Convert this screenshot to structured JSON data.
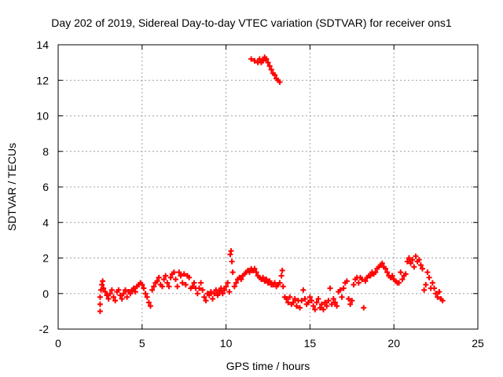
{
  "chart_data": {
    "type": "scatter",
    "title": "Day 202 of 2019, Sidereal Day-to-day VTEC variation (SDTVAR) for receiver ons1",
    "xlabel": "GPS time / hours",
    "ylabel": "SDTVAR / TECUs",
    "xlim": [
      0,
      25
    ],
    "ylim": [
      -2,
      14
    ],
    "xticks": [
      "0",
      "5",
      "10",
      "15",
      "20",
      "25"
    ],
    "yticks": [
      "-2",
      "0",
      "2",
      "4",
      "6",
      "8",
      "10",
      "12",
      "14"
    ],
    "grid": true,
    "marker": "plus",
    "color": "#ff0000",
    "series": [
      {
        "name": "SDTVAR",
        "points": [
          [
            2.5,
            -1.0
          ],
          [
            2.5,
            -0.6
          ],
          [
            2.5,
            -0.2
          ],
          [
            2.55,
            0.2
          ],
          [
            2.6,
            0.5
          ],
          [
            2.65,
            0.7
          ],
          [
            2.7,
            0.3
          ],
          [
            2.8,
            0.1
          ],
          [
            2.9,
            -0.1
          ],
          [
            3.0,
            -0.3
          ],
          [
            3.1,
            0.0
          ],
          [
            3.2,
            0.2
          ],
          [
            3.3,
            -0.2
          ],
          [
            3.4,
            -0.4
          ],
          [
            3.5,
            0.1
          ],
          [
            3.6,
            0.2
          ],
          [
            3.7,
            -0.1
          ],
          [
            3.8,
            -0.3
          ],
          [
            3.9,
            0.0
          ],
          [
            4.0,
            0.2
          ],
          [
            4.1,
            -0.2
          ],
          [
            4.2,
            0.1
          ],
          [
            4.3,
            0.0
          ],
          [
            4.4,
            0.2
          ],
          [
            4.5,
            0.3
          ],
          [
            4.6,
            0.1
          ],
          [
            4.7,
            0.4
          ],
          [
            4.8,
            0.5
          ],
          [
            4.9,
            0.6
          ],
          [
            5.0,
            0.5
          ],
          [
            5.1,
            0.3
          ],
          [
            5.2,
            0.0
          ],
          [
            5.3,
            -0.2
          ],
          [
            5.4,
            -0.5
          ],
          [
            5.5,
            -0.7
          ],
          [
            5.6,
            0.2
          ],
          [
            5.7,
            0.4
          ],
          [
            5.8,
            0.6
          ],
          [
            5.9,
            0.7
          ],
          [
            6.0,
            0.9
          ],
          [
            6.1,
            0.5
          ],
          [
            6.2,
            0.4
          ],
          [
            6.3,
            0.8
          ],
          [
            6.4,
            1.0
          ],
          [
            6.5,
            0.6
          ],
          [
            6.6,
            0.4
          ],
          [
            6.7,
            0.9
          ],
          [
            6.8,
            1.1
          ],
          [
            6.9,
            1.2
          ],
          [
            7.0,
            0.8
          ],
          [
            7.1,
            0.4
          ],
          [
            7.2,
            1.2
          ],
          [
            7.3,
            1.0
          ],
          [
            7.4,
            0.6
          ],
          [
            7.5,
            1.1
          ],
          [
            7.6,
            0.5
          ],
          [
            7.7,
            1.0
          ],
          [
            7.8,
            0.9
          ],
          [
            7.9,
            0.3
          ],
          [
            8.0,
            0.4
          ],
          [
            8.1,
            0.6
          ],
          [
            8.2,
            0.3
          ],
          [
            8.3,
            0.0
          ],
          [
            8.4,
            0.3
          ],
          [
            8.5,
            0.6
          ],
          [
            8.6,
            0.2
          ],
          [
            8.7,
            -0.2
          ],
          [
            8.8,
            -0.4
          ],
          [
            8.9,
            0.0
          ],
          [
            9.0,
            -0.1
          ],
          [
            9.1,
            0.1
          ],
          [
            9.2,
            -0.3
          ],
          [
            9.3,
            0.0
          ],
          [
            9.4,
            0.2
          ],
          [
            9.5,
            -0.1
          ],
          [
            9.6,
            0.1
          ],
          [
            9.7,
            0.3
          ],
          [
            9.8,
            0.0
          ],
          [
            9.9,
            0.2
          ],
          [
            10.0,
            0.4
          ],
          [
            10.1,
            0.6
          ],
          [
            10.2,
            0.1
          ],
          [
            10.25,
            2.2
          ],
          [
            10.3,
            2.4
          ],
          [
            10.35,
            1.8
          ],
          [
            10.4,
            1.2
          ],
          [
            10.5,
            0.4
          ],
          [
            10.6,
            0.6
          ],
          [
            10.7,
            0.8
          ],
          [
            10.8,
            0.9
          ],
          [
            10.9,
            0.8
          ],
          [
            11.0,
            1.0
          ],
          [
            11.1,
            1.1
          ],
          [
            11.2,
            1.2
          ],
          [
            11.3,
            1.3
          ],
          [
            11.4,
            1.2
          ],
          [
            11.5,
            1.4
          ],
          [
            11.6,
            1.3
          ],
          [
            11.7,
            1.4
          ],
          [
            11.8,
            1.2
          ],
          [
            11.9,
            1.0
          ],
          [
            12.0,
            0.9
          ],
          [
            12.1,
            0.8
          ],
          [
            12.2,
            0.9
          ],
          [
            12.3,
            0.7
          ],
          [
            12.4,
            0.8
          ],
          [
            12.5,
            0.6
          ],
          [
            12.6,
            0.7
          ],
          [
            12.7,
            0.5
          ],
          [
            12.8,
            0.5
          ],
          [
            12.9,
            0.6
          ],
          [
            13.0,
            0.4
          ],
          [
            13.1,
            0.5
          ],
          [
            13.2,
            0.6
          ],
          [
            13.3,
            1.0
          ],
          [
            13.35,
            1.3
          ],
          [
            13.4,
            0.4
          ],
          [
            13.5,
            -0.2
          ],
          [
            13.6,
            -0.3
          ],
          [
            13.7,
            -0.5
          ],
          [
            13.8,
            -0.2
          ],
          [
            13.9,
            -0.6
          ],
          [
            14.0,
            -0.5
          ],
          [
            14.1,
            -0.3
          ],
          [
            14.2,
            -0.7
          ],
          [
            14.3,
            -0.4
          ],
          [
            14.4,
            -0.8
          ],
          [
            14.5,
            -0.4
          ],
          [
            14.6,
            0.2
          ],
          [
            14.7,
            -0.3
          ],
          [
            14.8,
            -0.6
          ],
          [
            14.9,
            -0.5
          ],
          [
            15.0,
            -0.2
          ],
          [
            15.1,
            -0.4
          ],
          [
            15.2,
            -0.7
          ],
          [
            15.3,
            -0.9
          ],
          [
            15.4,
            -0.5
          ],
          [
            15.5,
            -0.3
          ],
          [
            15.6,
            -0.8
          ],
          [
            15.7,
            -0.6
          ],
          [
            15.8,
            -0.9
          ],
          [
            15.9,
            -0.5
          ],
          [
            16.0,
            -0.7
          ],
          [
            16.1,
            -0.4
          ],
          [
            16.2,
            0.3
          ],
          [
            16.3,
            -0.6
          ],
          [
            16.4,
            -0.3
          ],
          [
            16.5,
            -0.5
          ],
          [
            16.6,
            -0.7
          ],
          [
            16.7,
            0.1
          ],
          [
            16.8,
            0.2
          ],
          [
            16.9,
            -0.2
          ],
          [
            17.0,
            0.3
          ],
          [
            17.1,
            0.6
          ],
          [
            17.2,
            0.7
          ],
          [
            17.3,
            -0.3
          ],
          [
            17.4,
            -0.6
          ],
          [
            17.5,
            -0.4
          ],
          [
            17.6,
            0.5
          ],
          [
            17.7,
            0.8
          ],
          [
            17.8,
            0.9
          ],
          [
            17.9,
            0.6
          ],
          [
            18.0,
            0.9
          ],
          [
            18.1,
            0.8
          ],
          [
            18.2,
            -0.8
          ],
          [
            18.3,
            0.7
          ],
          [
            18.4,
            0.9
          ],
          [
            18.5,
            1.0
          ],
          [
            18.6,
            1.0
          ],
          [
            18.7,
            1.2
          ],
          [
            18.8,
            1.1
          ],
          [
            18.9,
            1.2
          ],
          [
            19.0,
            1.4
          ],
          [
            19.1,
            1.5
          ],
          [
            19.2,
            1.6
          ],
          [
            19.3,
            1.7
          ],
          [
            19.4,
            1.5
          ],
          [
            19.5,
            1.4
          ],
          [
            19.6,
            1.2
          ],
          [
            19.7,
            1.0
          ],
          [
            19.8,
            0.9
          ],
          [
            19.9,
            1.0
          ],
          [
            20.0,
            0.8
          ],
          [
            20.1,
            0.7
          ],
          [
            20.2,
            0.6
          ],
          [
            20.3,
            0.6
          ],
          [
            20.4,
            1.2
          ],
          [
            20.5,
            0.8
          ],
          [
            20.6,
            1.0
          ],
          [
            20.7,
            1.1
          ],
          [
            20.8,
            1.8
          ],
          [
            20.9,
            2.0
          ],
          [
            21.0,
            1.7
          ],
          [
            21.1,
            1.9
          ],
          [
            21.2,
            1.5
          ],
          [
            21.3,
            2.1
          ],
          [
            21.4,
            1.8
          ],
          [
            21.5,
            1.9
          ],
          [
            21.6,
            1.6
          ],
          [
            21.7,
            1.4
          ],
          [
            21.8,
            0.2
          ],
          [
            21.9,
            0.5
          ],
          [
            22.0,
            1.2
          ],
          [
            22.1,
            0.9
          ],
          [
            22.2,
            0.3
          ],
          [
            22.3,
            0.6
          ],
          [
            22.4,
            0.3
          ],
          [
            22.5,
            0.0
          ],
          [
            22.6,
            -0.2
          ],
          [
            22.7,
            0.1
          ],
          [
            22.8,
            -0.3
          ],
          [
            22.9,
            -0.4
          ],
          [
            11.5,
            13.2
          ],
          [
            11.7,
            13.1
          ],
          [
            11.9,
            13.0
          ],
          [
            12.0,
            13.2
          ],
          [
            12.1,
            13.0
          ],
          [
            12.2,
            13.1
          ],
          [
            12.3,
            13.3
          ],
          [
            12.4,
            13.2
          ],
          [
            12.5,
            13.0
          ],
          [
            12.6,
            12.8
          ],
          [
            12.7,
            12.6
          ],
          [
            12.8,
            12.4
          ],
          [
            12.9,
            12.3
          ],
          [
            13.0,
            12.1
          ],
          [
            13.1,
            12.0
          ],
          [
            13.2,
            11.9
          ]
        ]
      }
    ]
  }
}
